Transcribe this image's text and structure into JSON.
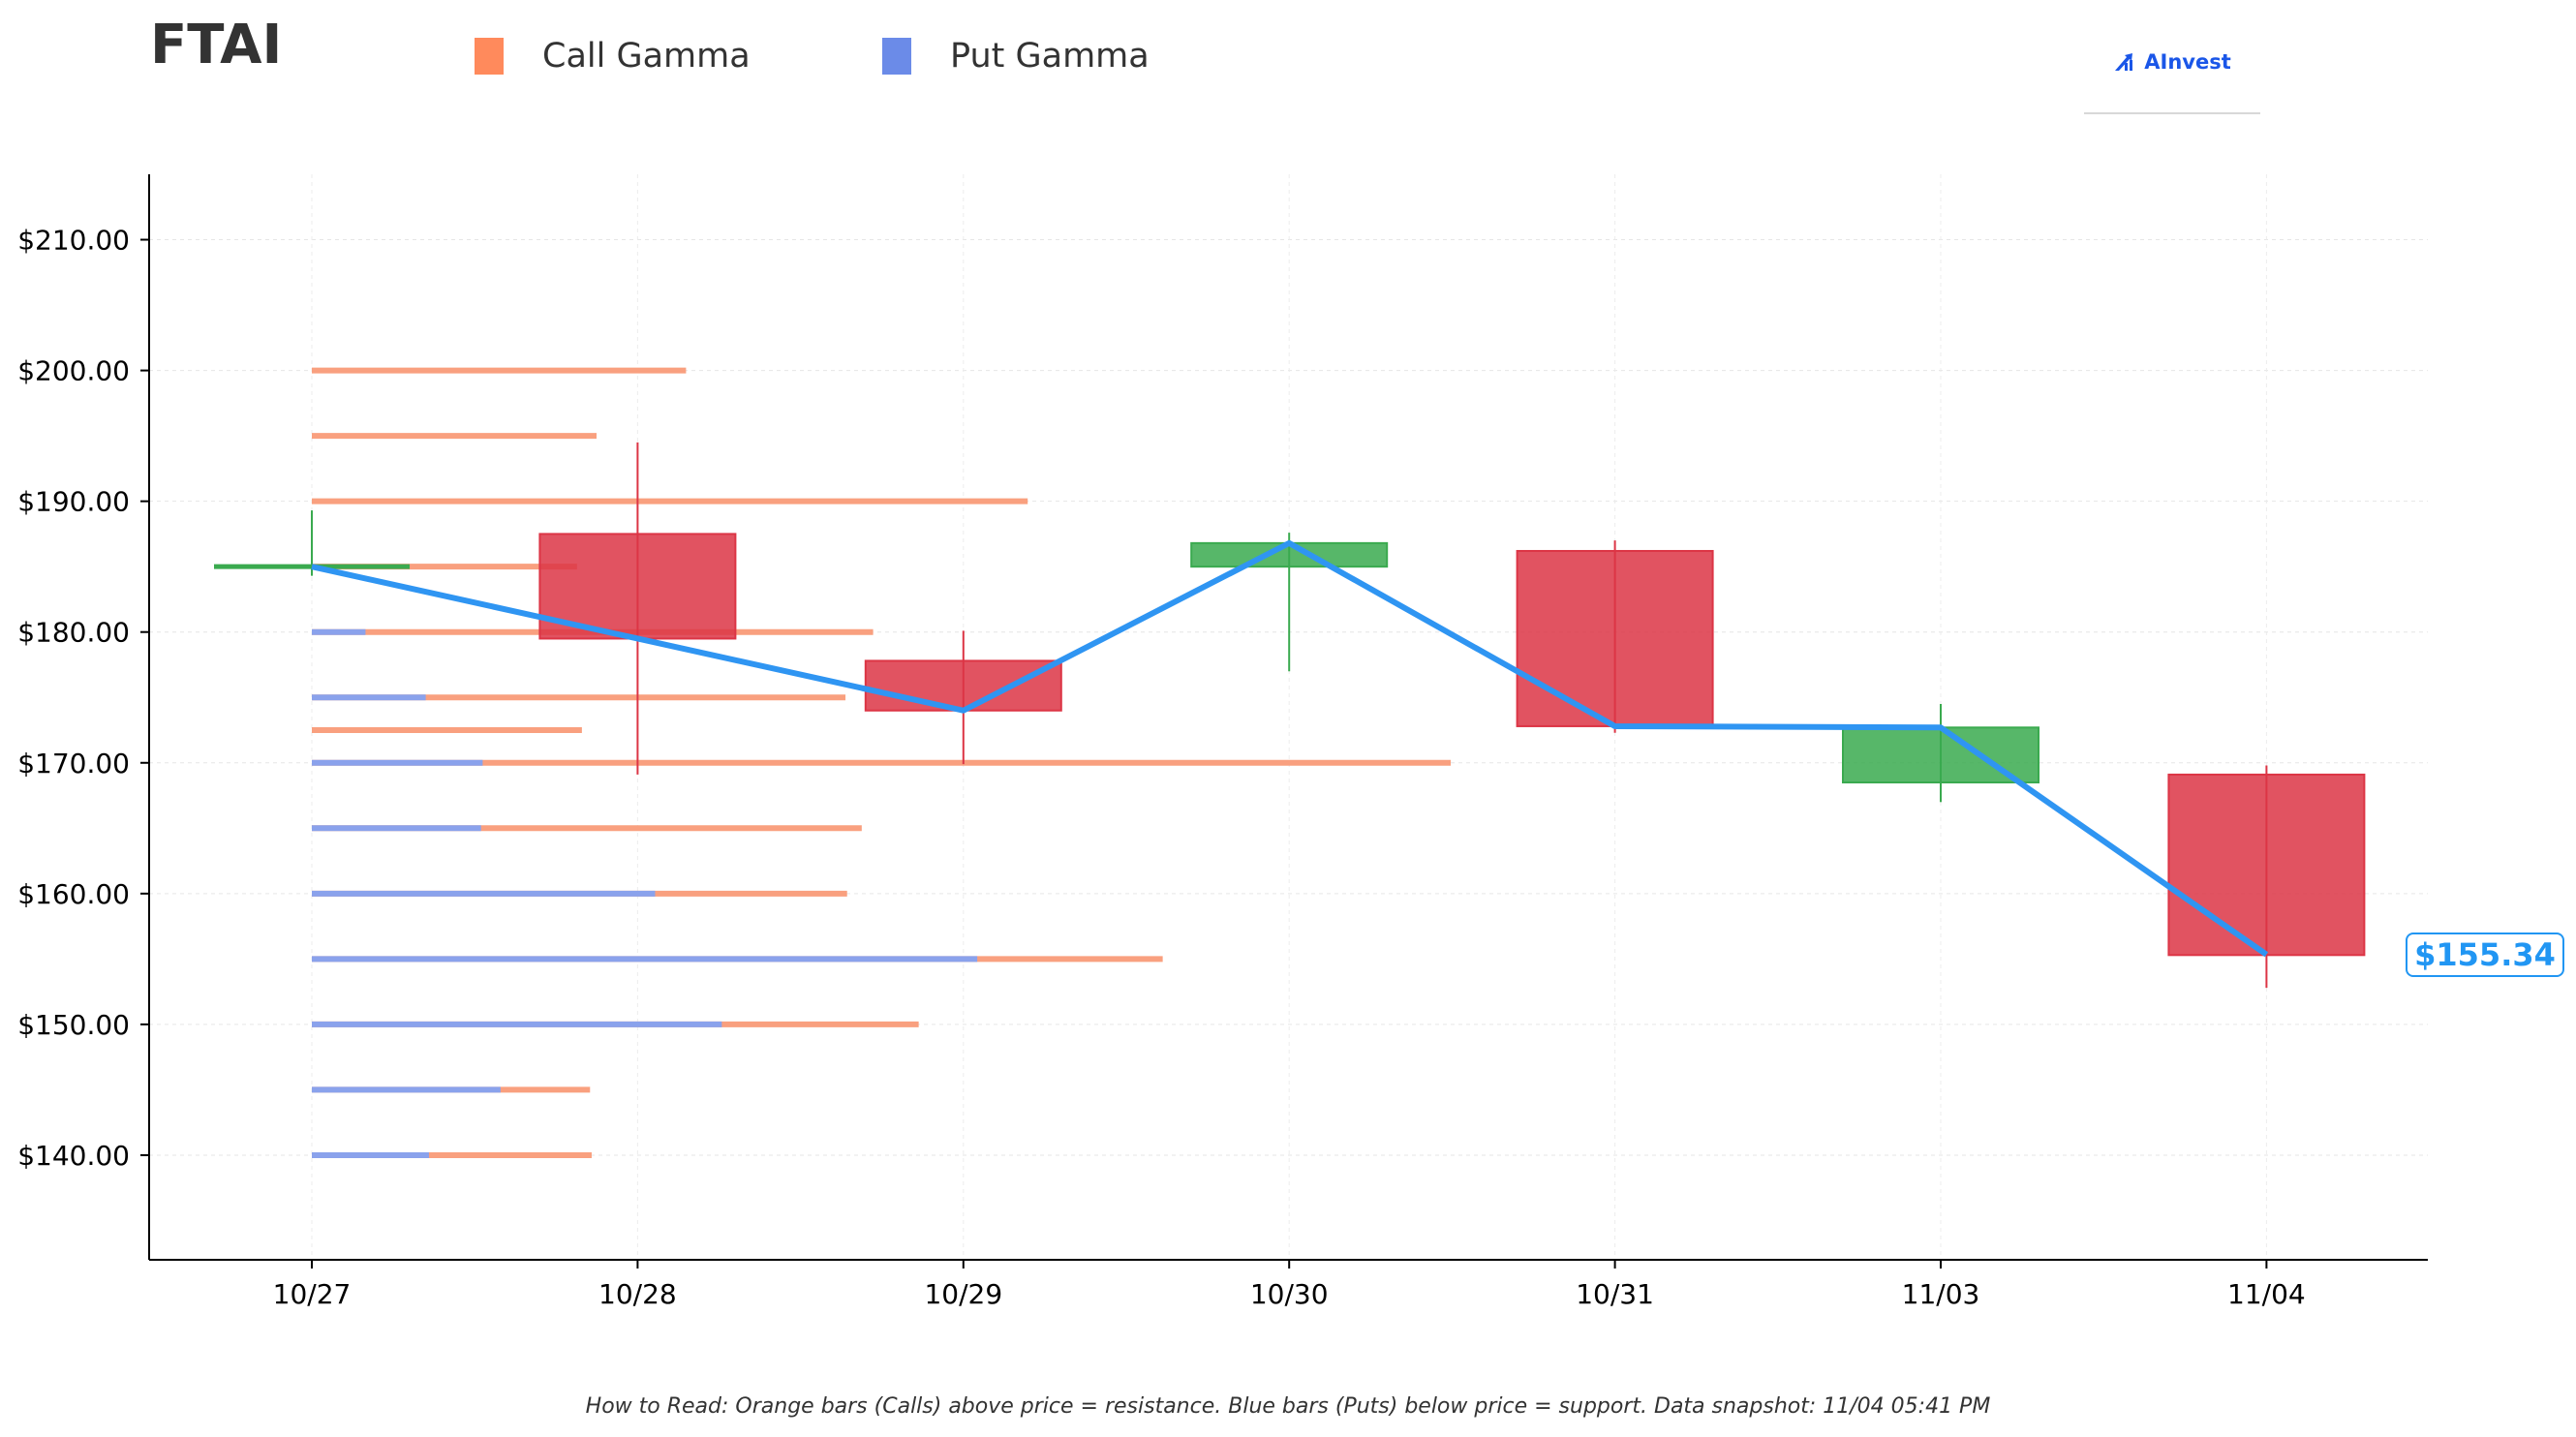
{
  "title": "FTAI",
  "legend": [
    {
      "label": "Call Gamma",
      "color": "#ff8a5c"
    },
    {
      "label": "Put Gamma",
      "color": "#6b8be8"
    }
  ],
  "brand": {
    "name": "AInvest",
    "icon": "ainvest-logo-icon",
    "color": "#1a56e8"
  },
  "current_price_label": "$155.34",
  "footnote": "How to Read: Orange bars (Calls) above price = resistance. Blue bars (Puts) below price = support. Data snapshot: 11/04 05:41 PM",
  "chart_data": {
    "type": "candlestick",
    "categories": [
      "10/27",
      "10/28",
      "10/29",
      "10/30",
      "10/31",
      "11/03",
      "11/04"
    ],
    "ylim": [
      132,
      215
    ],
    "y_ticks": [
      140,
      150,
      160,
      170,
      180,
      190,
      200,
      210
    ],
    "y_tick_labels": [
      "$140.00",
      "$150.00",
      "$160.00",
      "$170.00",
      "$180.00",
      "$190.00",
      "$200.00",
      "$210.00"
    ],
    "candles": [
      {
        "date": "10/27",
        "open": 185.0,
        "close": 185.0,
        "high": 189.3,
        "low": 184.3
      },
      {
        "date": "10/28",
        "open": 187.5,
        "close": 179.5,
        "high": 194.5,
        "low": 169.1
      },
      {
        "date": "10/29",
        "open": 177.8,
        "close": 174.0,
        "high": 180.1,
        "low": 169.9
      },
      {
        "date": "10/30",
        "open": 185.0,
        "close": 186.8,
        "high": 187.6,
        "low": 177.0
      },
      {
        "date": "10/31",
        "open": 186.2,
        "close": 172.8,
        "high": 187.0,
        "low": 172.3
      },
      {
        "date": "11/03",
        "open": 168.5,
        "close": 172.7,
        "high": 174.5,
        "low": 167.0
      },
      {
        "date": "11/04",
        "open": 169.1,
        "close": 155.3,
        "high": 169.8,
        "low": 152.8
      }
    ],
    "close_line": [
      185.0,
      179.5,
      174.0,
      186.8,
      172.8,
      172.7,
      155.34
    ],
    "last_price": 155.34,
    "gamma_levels": [
      {
        "strike": 200.0,
        "call": 2.3,
        "put": 0.0
      },
      {
        "strike": 195.0,
        "call": 1.75,
        "put": 0.0
      },
      {
        "strike": 190.0,
        "call": 4.4,
        "put": 0.0
      },
      {
        "strike": 185.0,
        "call": 1.63,
        "put": 0.0
      },
      {
        "strike": 180.0,
        "call": 3.45,
        "put": 0.33
      },
      {
        "strike": 175.0,
        "call": 3.28,
        "put": 0.7
      },
      {
        "strike": 172.5,
        "call": 1.66,
        "put": 0.0
      },
      {
        "strike": 170.0,
        "call": 7.0,
        "put": 1.05
      },
      {
        "strike": 165.0,
        "call": 3.38,
        "put": 1.04
      },
      {
        "strike": 160.0,
        "call": 3.29,
        "put": 2.11
      },
      {
        "strike": 155.0,
        "call": 5.23,
        "put": 4.09
      },
      {
        "strike": 150.0,
        "call": 3.73,
        "put": 2.52
      },
      {
        "strike": 145.0,
        "call": 1.71,
        "put": 1.16
      },
      {
        "strike": 140.0,
        "call": 1.72,
        "put": 0.72
      }
    ],
    "grid": true,
    "colors": {
      "up": "#3aaa4f",
      "down": "#dc3545",
      "line": "#2f95f2",
      "call": "#f9a07f",
      "put": "#8aa2ec"
    }
  }
}
